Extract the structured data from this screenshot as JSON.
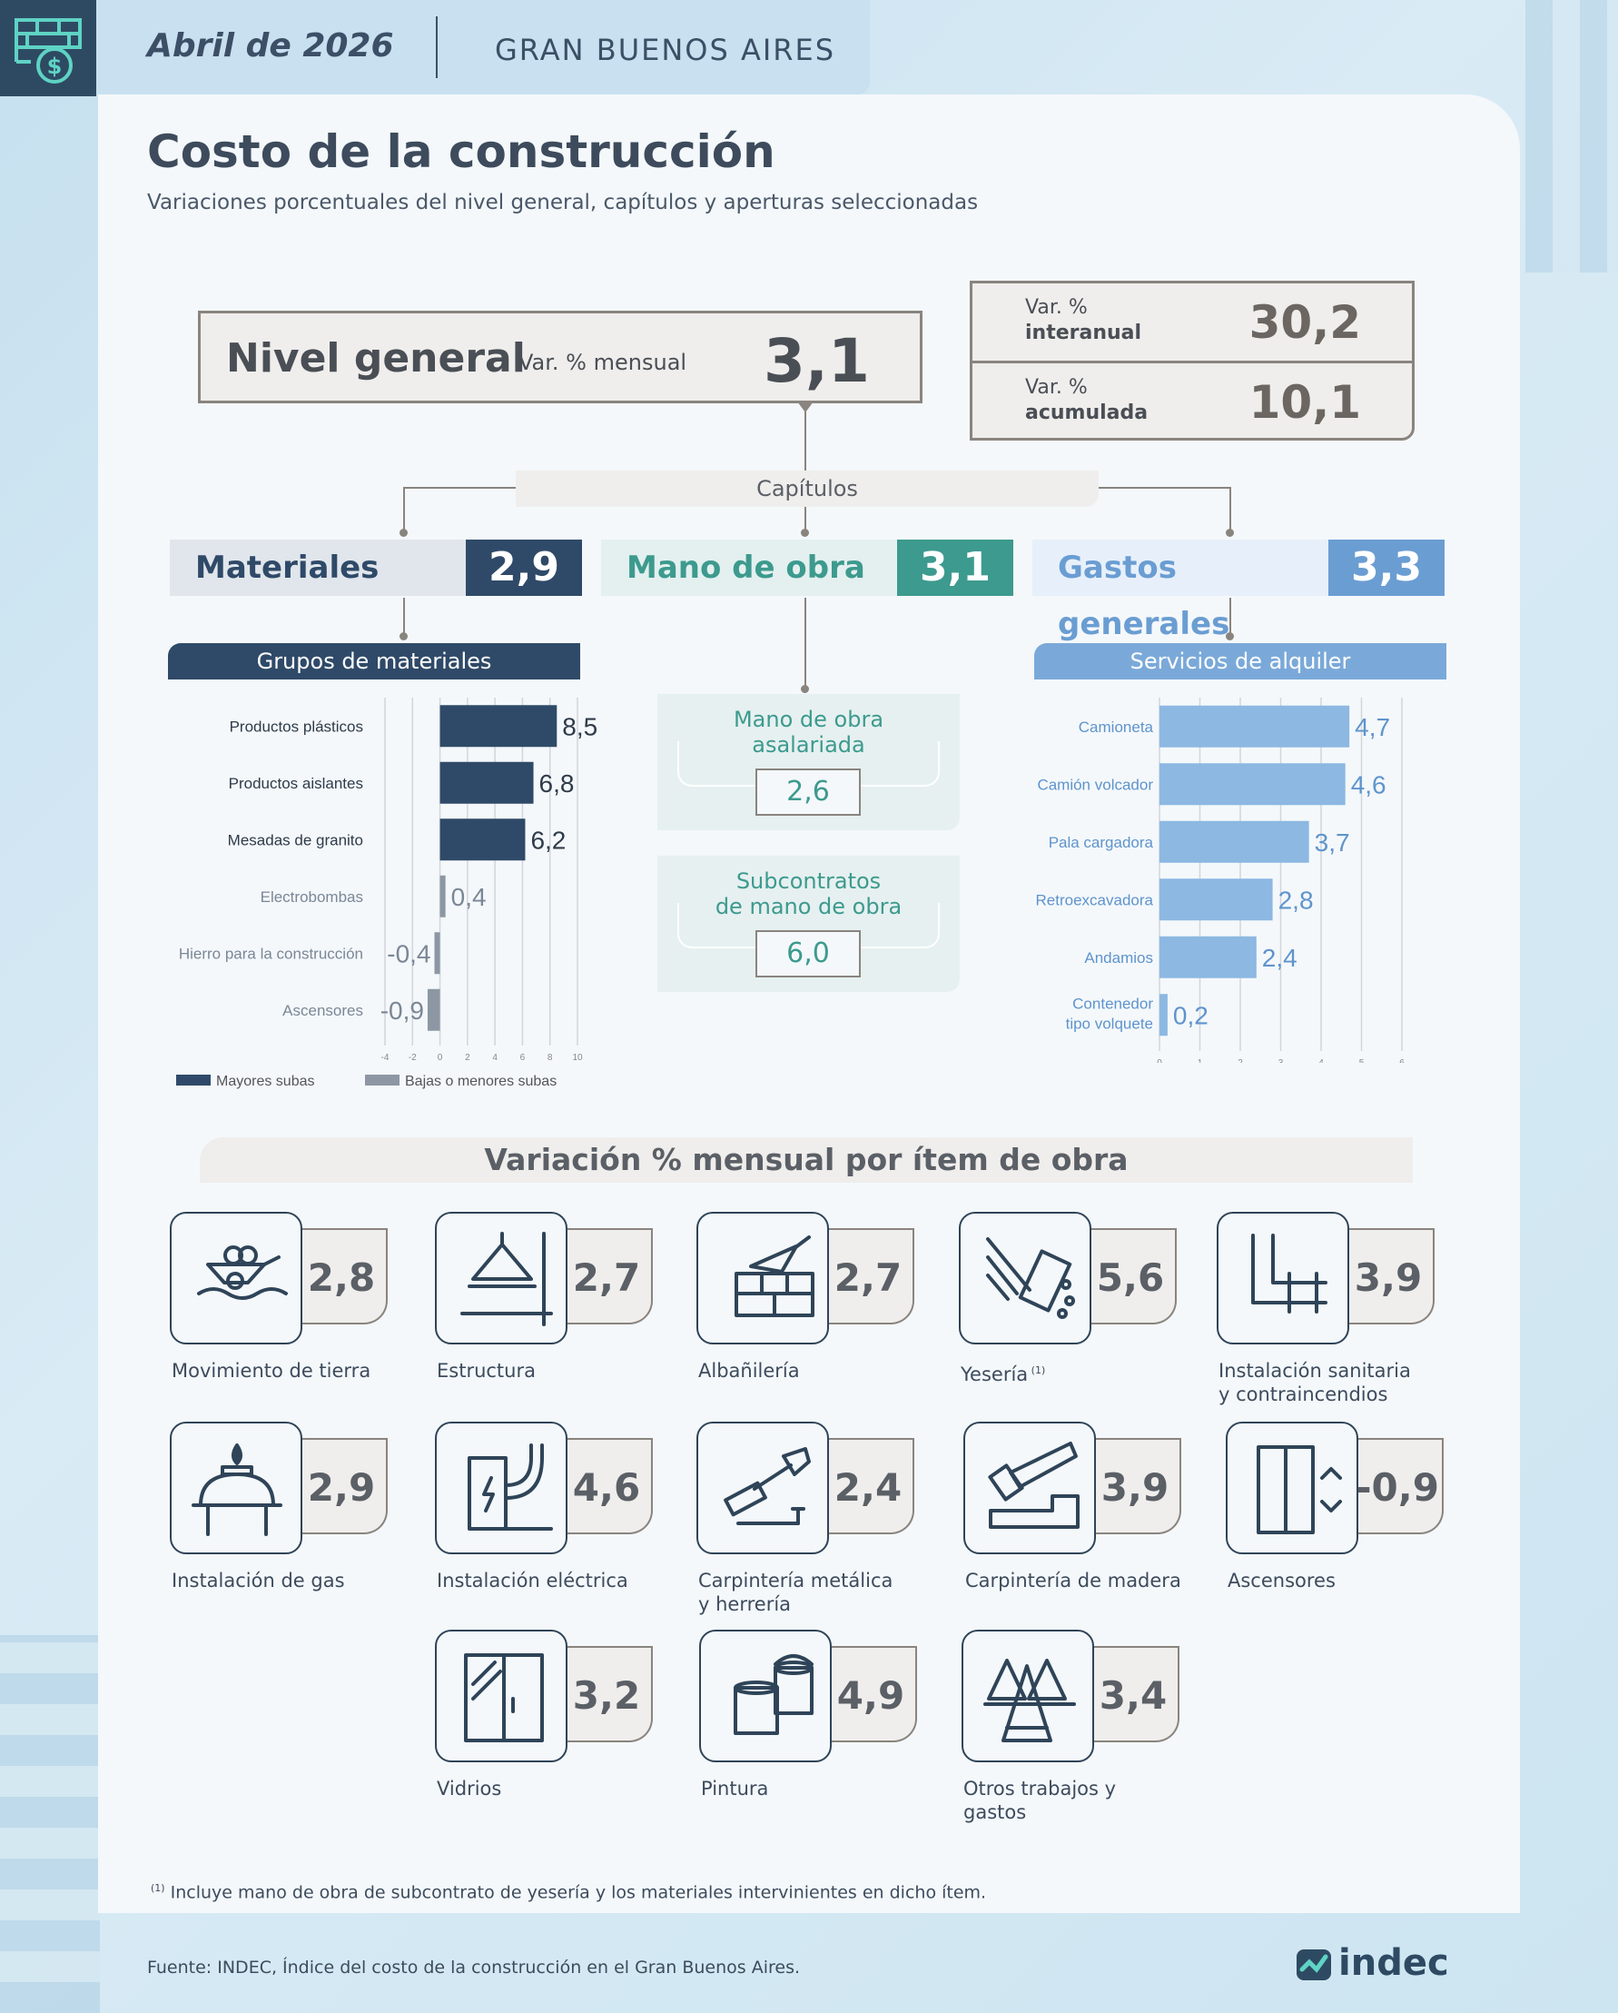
{
  "header": {
    "date": "Abril de 2026",
    "region": "GRAN BUENOS AIRES"
  },
  "title": "Costo de la construcción",
  "subtitle": "Variaciones porcentuales del nivel general, capítulos y aperturas seleccionadas",
  "nivel_general": {
    "label": "Nivel general",
    "var_label": "Var. % mensual",
    "value": "3,1"
  },
  "interanual": {
    "line1": "Var. %",
    "line2": "interanual",
    "value": "30,2"
  },
  "acumulada": {
    "line1": "Var. %",
    "line2": "acumulada",
    "value": "10,1"
  },
  "capitulos_label": "Capítulos",
  "chapters": [
    {
      "name": "Materiales",
      "value": "2,9"
    },
    {
      "name": "Mano de obra",
      "value": "3,1"
    },
    {
      "name": "Gastos generales",
      "value": "3,3"
    }
  ],
  "colors": {
    "materiales": "#2f4a68",
    "mano_obra": "#3d9a8e",
    "gastos": "#7aa9d9",
    "gris": "#8d97a3"
  },
  "grupos_title": "Grupos de materiales",
  "servicios_title": "Servicios de alquiler",
  "mano_obra": [
    {
      "title_1": "Mano de obra",
      "title_2": "asalariada",
      "value": "2,6"
    },
    {
      "title_1": "Subcontratos",
      "title_2": "de mano de obra",
      "value": "6,0"
    }
  ],
  "chart_data": [
    {
      "type": "bar",
      "title": "Grupos de materiales",
      "orientation": "horizontal",
      "categories": [
        "Productos plásticos",
        "Productos aislantes",
        "Mesadas de granito",
        "Electrobombas",
        "Hierro para la construcción",
        "Ascensores"
      ],
      "values": [
        8.5,
        6.8,
        6.2,
        0.4,
        -0.4,
        -0.9
      ],
      "value_labels": [
        "8,5",
        "6,8",
        "6,2",
        "0,4",
        "-0,4",
        "-0,9"
      ],
      "highlight": [
        true,
        true,
        true,
        false,
        false,
        false
      ],
      "xlim": [
        -4,
        10
      ],
      "xticks": [
        "-4",
        "-2",
        "0",
        "2",
        "4",
        "6",
        "8",
        "10"
      ],
      "legend": [
        "Mayores subas",
        "Bajas o menores subas"
      ]
    },
    {
      "type": "bar",
      "title": "Servicios de alquiler",
      "orientation": "horizontal",
      "categories": [
        "Camioneta",
        "Camión volcador",
        "Pala cargadora",
        "Retroexcavadora",
        "Andamios",
        "Contenedor tipo volquete"
      ],
      "values": [
        4.7,
        4.6,
        3.7,
        2.8,
        2.4,
        0.2
      ],
      "value_labels": [
        "4,7",
        "4,6",
        "3,7",
        "2,8",
        "2,4",
        "0,2"
      ],
      "xlim": [
        0,
        6
      ],
      "xticks": [
        "0",
        "1",
        "2",
        "3",
        "4",
        "5",
        "6"
      ]
    }
  ],
  "items_title": "Variación % mensual por ítem de obra",
  "items": [
    {
      "label": "Movimiento de tierra",
      "value": "2,8",
      "icon": "wheelbarrow-icon"
    },
    {
      "label": "Estructura",
      "value": "2,7",
      "icon": "beam-icon"
    },
    {
      "label": "Albañilería",
      "value": "2,7",
      "icon": "bricks-icon"
    },
    {
      "label": "Yesería",
      "sup": "(1)",
      "value": "5,6",
      "icon": "plaster-icon"
    },
    {
      "label": "Instalación sanitaria y contraincendios",
      "value": "3,9",
      "icon": "pipes-icon"
    },
    {
      "label": "Instalación de gas",
      "value": "2,9",
      "icon": "gas-icon"
    },
    {
      "label": "Instalación eléctrica",
      "value": "4,6",
      "icon": "electric-icon"
    },
    {
      "label": "Carpintería metálica y herrería",
      "value": "2,4",
      "icon": "hammer-icon"
    },
    {
      "label": "Carpintería de madera",
      "value": "3,9",
      "icon": "saw-icon"
    },
    {
      "label": "Ascensores",
      "value": "-0,9",
      "icon": "elevator-icon"
    },
    {
      "label": "Vidrios",
      "value": "3,2",
      "icon": "window-icon"
    },
    {
      "label": "Pintura",
      "value": "4,9",
      "icon": "paint-icon"
    },
    {
      "label": "Otros trabajos y gastos",
      "value": "3,4",
      "icon": "scaffold-icon"
    }
  ],
  "footnote_mark": "(1)",
  "footnote": "Incluye mano de obra de subcontrato de yesería y los materiales intervinientes en dicho ítem.",
  "source": "Fuente: INDEC, Índice del costo de la construcción en el Gran Buenos Aires.",
  "brand": "indec"
}
